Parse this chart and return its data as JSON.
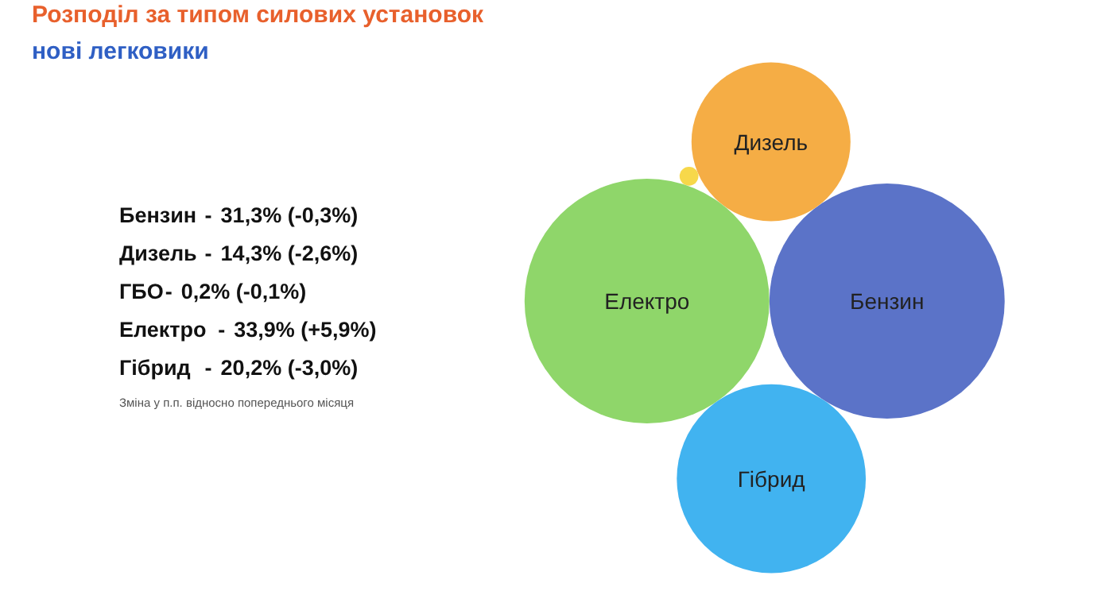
{
  "chart_data": {
    "type": "other",
    "title": "Розподіл за типом силових установок",
    "subtitle": "нові легковики",
    "categories": [
      "Бензин",
      "Дизель",
      "ГБО",
      "Електро",
      "Гібрид"
    ],
    "values": [
      31.3,
      14.3,
      0.2,
      33.9,
      20.2
    ],
    "value_labels": [
      "31,3% (-0,3%)",
      "14,3% (-2,6%)",
      "0,2% (-0,1%)",
      "33,9% (+5,9%)",
      "20,2% (-3,0%)"
    ],
    "colors": [
      "#5b73c8",
      "#f5ad45",
      "#f7d84a",
      "#8fd66a",
      "#41b3f0"
    ],
    "annotations": [
      "-",
      "Зміна у п.п. відносно попереднього місяця"
    ]
  }
}
